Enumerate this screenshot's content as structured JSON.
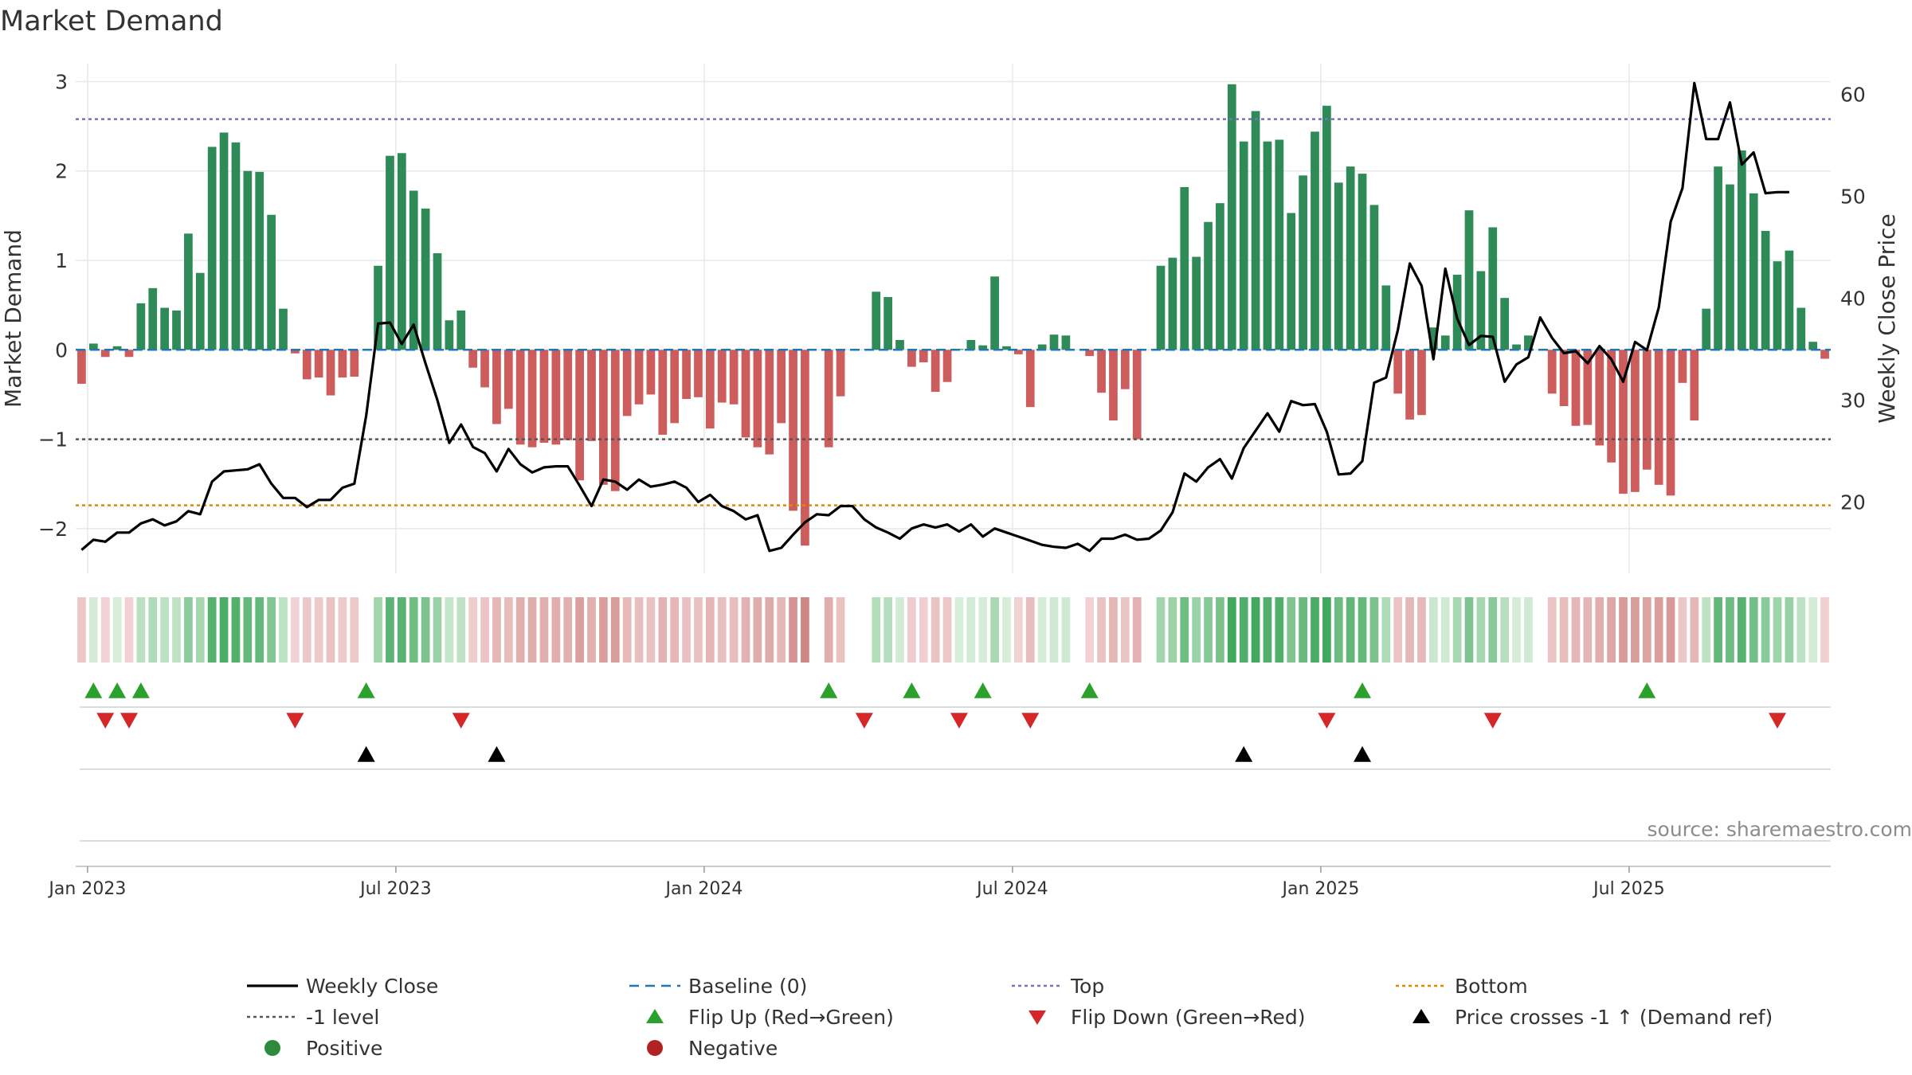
{
  "chart_data": {
    "type": "bar+line",
    "title": "Market Demand",
    "ylabel": "Market Demand",
    "y2label": "Weekly Close Price",
    "ylim": [
      -2.5,
      3.2
    ],
    "y2lim": [
      13,
      63
    ],
    "yticks": [
      3,
      2,
      1,
      0,
      -1,
      -2
    ],
    "y2ticks": [
      60,
      50,
      40,
      30,
      20
    ],
    "xtick_labels": [
      "Jan 2023",
      "Jul 2023",
      "Jan 2024",
      "Jul 2024",
      "Jan 2025",
      "Jul 2025"
    ],
    "xtick_weeks": [
      0.5,
      26.5,
      52.5,
      78.5,
      104.5,
      130.5
    ],
    "weeks": 143,
    "top_level": 2.58,
    "bottom_level": -1.74,
    "minus_one_level": -1,
    "baseline": 0,
    "demand": [
      -0.38,
      0.07,
      -0.08,
      0.04,
      -0.08,
      0.52,
      0.69,
      0.47,
      0.44,
      1.3,
      0.86,
      2.27,
      2.43,
      2.32,
      2.0,
      1.99,
      1.51,
      0.46,
      -0.04,
      -0.33,
      -0.31,
      -0.51,
      -0.31,
      -0.3,
      0,
      0.94,
      2.17,
      2.2,
      1.78,
      1.58,
      1.08,
      0.33,
      0.44,
      -0.2,
      -0.42,
      -0.83,
      -0.66,
      -1.06,
      -1.09,
      -1.04,
      -1.06,
      -1.01,
      -1.46,
      -1.02,
      -1.51,
      -1.58,
      -0.74,
      -0.61,
      -0.5,
      -0.95,
      -0.82,
      -0.55,
      -0.53,
      -0.88,
      -0.59,
      -0.61,
      -0.98,
      -1.09,
      -1.17,
      -0.82,
      -1.8,
      -2.19,
      0,
      -1.09,
      -0.52,
      0,
      0,
      0.65,
      0.59,
      0.11,
      -0.19,
      -0.14,
      -0.47,
      -0.36,
      0.01,
      0.11,
      0.05,
      0.82,
      0.04,
      -0.05,
      -0.64,
      0.06,
      0.17,
      0.16,
      0,
      -0.07,
      -0.48,
      -0.79,
      -0.44,
      -1.0,
      0,
      0.94,
      1.03,
      1.82,
      1.04,
      1.43,
      1.64,
      2.97,
      2.33,
      2.67,
      2.33,
      2.35,
      1.53,
      1.95,
      2.44,
      2.73,
      1.87,
      2.05,
      1.97,
      1.62,
      0.72,
      -0.49,
      -0.78,
      -0.73,
      0.25,
      0.16,
      0.84,
      1.56,
      0.88,
      1.37,
      0.58,
      0.06,
      0.16,
      0,
      -0.49,
      -0.63,
      -0.85,
      -0.84,
      -1.07,
      -1.26,
      -1.61,
      -1.59,
      -1.34,
      -1.51,
      -1.63,
      -0.37,
      -0.79,
      0.46,
      2.05,
      1.85,
      2.23,
      1.75,
      1.33,
      0.99,
      1.11,
      0.47,
      0.09,
      -0.1
    ],
    "weekly_close": [
      15.3,
      16.3,
      16.1,
      17.0,
      17.0,
      17.9,
      18.3,
      17.7,
      18.1,
      19.1,
      18.8,
      22.0,
      23.0,
      23.1,
      23.2,
      23.7,
      21.8,
      20.4,
      20.4,
      19.5,
      20.2,
      20.2,
      21.4,
      21.8,
      28.5,
      37.5,
      37.6,
      35.5,
      37.4,
      33.6,
      30.0,
      25.8,
      27.6,
      25.4,
      24.8,
      23.0,
      25.2,
      23.7,
      22.9,
      23.4,
      23.5,
      23.5,
      21.6,
      19.6,
      22.2,
      22.0,
      21.2,
      22.2,
      21.5,
      21.7,
      22.0,
      21.4,
      20.0,
      20.7,
      19.6,
      19.1,
      18.3,
      18.7,
      15.2,
      15.5,
      16.8,
      18.0,
      18.8,
      18.7,
      19.6,
      19.6,
      18.3,
      17.5,
      17.0,
      16.4,
      17.4,
      17.8,
      17.5,
      17.8,
      17.1,
      17.8,
      16.6,
      17.4,
      17.0,
      16.6,
      16.2,
      15.8,
      15.6,
      15.5,
      15.9,
      15.2,
      16.4,
      16.4,
      16.8,
      16.3,
      16.4,
      17.2,
      19.0,
      22.8,
      22.0,
      23.4,
      24.2,
      22.3,
      25.3,
      27.0,
      28.7,
      26.9,
      29.9,
      29.5,
      29.6,
      26.9,
      22.7,
      22.8,
      24.0,
      31.7,
      32.2,
      36.9,
      43.4,
      41.2,
      34.0,
      42.9,
      38.0,
      35.4,
      36.3,
      36.2,
      31.8,
      33.5,
      34.2,
      38.1,
      36.1,
      34.6,
      34.8,
      33.6,
      35.3,
      34.0,
      31.8,
      35.7,
      34.9,
      39.1,
      47.5,
      50.8,
      61.1,
      55.6,
      55.6,
      59.2,
      53.1,
      54.3,
      50.3,
      50.4,
      50.4
    ],
    "flip_up_weeks": [
      1,
      3,
      5,
      24,
      63,
      70,
      76,
      85,
      108,
      132
    ],
    "flip_down_weeks": [
      2,
      4,
      18,
      32,
      66,
      74,
      80,
      105,
      119,
      143
    ],
    "price_cross_weeks": [
      24,
      35,
      98,
      108
    ],
    "source": "source: sharemaestro.com",
    "legend": [
      {
        "label": "Weekly Close",
        "kind": "line",
        "color": "#000000"
      },
      {
        "label": "Baseline (0)",
        "kind": "dash",
        "color": "#1f77b4"
      },
      {
        "label": "Top",
        "kind": "dot",
        "color": "#7a6fc4"
      },
      {
        "label": "Bottom",
        "kind": "dot",
        "color": "#e08a00"
      },
      {
        "label": "-1 level",
        "kind": "dot",
        "color": "#555555"
      },
      {
        "label": "Flip Up (Red→Green)",
        "kind": "tri-up",
        "color": "#2ca02c"
      },
      {
        "label": "Flip Down (Green→Red)",
        "kind": "tri-down",
        "color": "#d62728"
      },
      {
        "label": "Price crosses -1 ↑ (Demand ref)",
        "kind": "tri-up",
        "color": "#000000"
      },
      {
        "label": "Positive",
        "kind": "circle",
        "color": "#2e8b3e"
      },
      {
        "label": "Negative",
        "kind": "circle",
        "color": "#b22222"
      }
    ],
    "colors": {
      "positive_bar": "#2e8b57",
      "negative_bar": "#cd5c5c",
      "close_line": "#000000",
      "grid": "#e8e8e8"
    }
  }
}
